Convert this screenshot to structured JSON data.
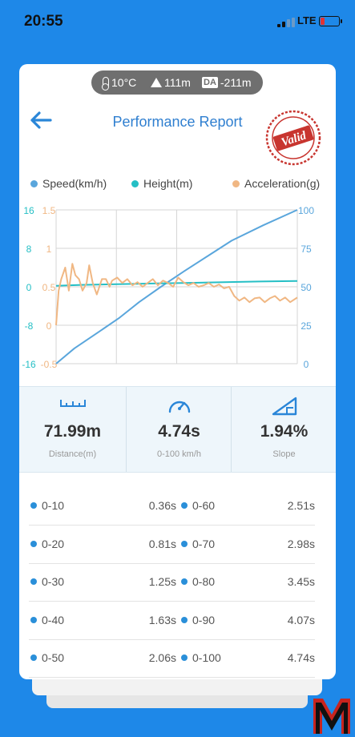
{
  "status_bar": {
    "time": "20:55",
    "network": "LTE"
  },
  "environment": {
    "temperature": "10°C",
    "altitude": "111m",
    "density_altitude_badge": "DA",
    "density_altitude": "-211m"
  },
  "header": {
    "title": "Performance Report",
    "stamp_text": "Valid"
  },
  "chart_data": {
    "type": "line",
    "legend": [
      "Speed(km/h)",
      "Height(m)",
      "Acceleration(g)"
    ],
    "colors": {
      "speed": "#5aa6dc",
      "height": "#25bfc5",
      "acceleration": "#f0b783",
      "grid": "#d6d6d6"
    },
    "axes": {
      "height": {
        "ticks": [
          "16",
          "8",
          "0",
          "-8",
          "-16"
        ],
        "range": [
          -16,
          16
        ]
      },
      "acceleration": {
        "ticks": [
          "1.5",
          "1",
          "0.5",
          "0",
          "-0.5"
        ],
        "range": [
          -0.5,
          1.5
        ]
      },
      "speed": {
        "ticks": [
          "100",
          "75",
          "50",
          "25",
          "0"
        ],
        "range": [
          0,
          100
        ]
      }
    },
    "x_range": [
      0,
      4.74
    ],
    "series": [
      {
        "key": "speed",
        "name": "Speed(km/h)",
        "points": [
          [
            0,
            0
          ],
          [
            0.36,
            10
          ],
          [
            0.81,
            20
          ],
          [
            1.25,
            30
          ],
          [
            1.63,
            40
          ],
          [
            2.06,
            50
          ],
          [
            2.51,
            60
          ],
          [
            2.98,
            70
          ],
          [
            3.45,
            80
          ],
          [
            4.07,
            90
          ],
          [
            4.74,
            100
          ]
        ]
      },
      {
        "key": "height",
        "name": "Height(m)",
        "points": [
          [
            0,
            0.2
          ],
          [
            0.5,
            0.4
          ],
          [
            1,
            0.5
          ],
          [
            1.5,
            0.6
          ],
          [
            2,
            0.7
          ],
          [
            2.5,
            0.8
          ],
          [
            3,
            0.9
          ],
          [
            3.5,
            1.0
          ],
          [
            4,
            1.1
          ],
          [
            4.74,
            1.2
          ]
        ]
      },
      {
        "key": "acceleration",
        "name": "Acceleration(g)",
        "points": [
          [
            0,
            0
          ],
          [
            0.05,
            0.45
          ],
          [
            0.1,
            0.6
          ],
          [
            0.18,
            0.75
          ],
          [
            0.25,
            0.45
          ],
          [
            0.32,
            0.8
          ],
          [
            0.38,
            0.65
          ],
          [
            0.45,
            0.6
          ],
          [
            0.52,
            0.45
          ],
          [
            0.6,
            0.55
          ],
          [
            0.65,
            0.78
          ],
          [
            0.72,
            0.55
          ],
          [
            0.8,
            0.4
          ],
          [
            0.9,
            0.6
          ],
          [
            0.98,
            0.6
          ],
          [
            1.05,
            0.5
          ],
          [
            1.1,
            0.58
          ],
          [
            1.2,
            0.62
          ],
          [
            1.3,
            0.55
          ],
          [
            1.4,
            0.6
          ],
          [
            1.5,
            0.52
          ],
          [
            1.6,
            0.56
          ],
          [
            1.7,
            0.5
          ],
          [
            1.8,
            0.55
          ],
          [
            1.9,
            0.6
          ],
          [
            2.0,
            0.52
          ],
          [
            2.1,
            0.58
          ],
          [
            2.2,
            0.55
          ],
          [
            2.3,
            0.5
          ],
          [
            2.4,
            0.62
          ],
          [
            2.5,
            0.56
          ],
          [
            2.6,
            0.52
          ],
          [
            2.7,
            0.55
          ],
          [
            2.8,
            0.5
          ],
          [
            2.9,
            0.52
          ],
          [
            3.0,
            0.55
          ],
          [
            3.1,
            0.5
          ],
          [
            3.2,
            0.53
          ],
          [
            3.3,
            0.48
          ],
          [
            3.4,
            0.5
          ],
          [
            3.5,
            0.38
          ],
          [
            3.6,
            0.32
          ],
          [
            3.7,
            0.36
          ],
          [
            3.8,
            0.3
          ],
          [
            3.9,
            0.35
          ],
          [
            4.0,
            0.36
          ],
          [
            4.1,
            0.3
          ],
          [
            4.2,
            0.35
          ],
          [
            4.3,
            0.38
          ],
          [
            4.4,
            0.32
          ],
          [
            4.5,
            0.36
          ],
          [
            4.6,
            0.3
          ],
          [
            4.74,
            0.36
          ]
        ]
      }
    ],
    "grid": true
  },
  "stats": [
    {
      "icon": "ruler-icon",
      "value": "71.99m",
      "label": "Distance(m)"
    },
    {
      "icon": "speedometer-icon",
      "value": "4.74s",
      "label": "0-100 km/h"
    },
    {
      "icon": "slope-icon",
      "value": "1.94%",
      "label": "Slope"
    }
  ],
  "splits": [
    {
      "left": {
        "range": "0-10",
        "time": "0.36s"
      },
      "right": {
        "range": "0-60",
        "time": "2.51s"
      }
    },
    {
      "left": {
        "range": "0-20",
        "time": "0.81s"
      },
      "right": {
        "range": "0-70",
        "time": "2.98s"
      }
    },
    {
      "left": {
        "range": "0-30",
        "time": "1.25s"
      },
      "right": {
        "range": "0-80",
        "time": "3.45s"
      }
    },
    {
      "left": {
        "range": "0-40",
        "time": "1.63s"
      },
      "right": {
        "range": "0-90",
        "time": "4.07s"
      }
    },
    {
      "left": {
        "range": "0-50",
        "time": "2.06s"
      },
      "right": {
        "range": "0-100",
        "time": "4.74s"
      }
    }
  ],
  "theme": {
    "background": "#1e88e8",
    "accent": "#2f7fd0",
    "stamp": "#c8352f"
  }
}
